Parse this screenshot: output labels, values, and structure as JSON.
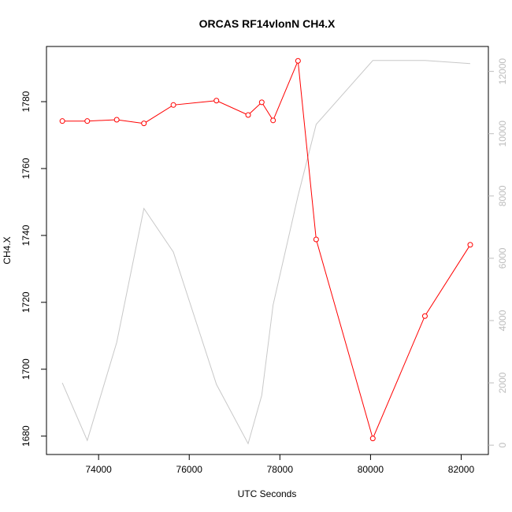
{
  "chart_data": {
    "type": "line",
    "title": "ORCAS RF14vlonN CH4.X",
    "xlabel": "UTC Seconds",
    "ylabel": "CH4.X",
    "y2label": "",
    "xlim": [
      72850,
      82600
    ],
    "ylim": [
      1674.5,
      1796.5
    ],
    "y2lim": [
      -300,
      12800
    ],
    "x_ticks": [
      74000,
      76000,
      78000,
      80000,
      82000
    ],
    "y_ticks": [
      1680,
      1700,
      1720,
      1740,
      1760,
      1780
    ],
    "y2_ticks": [
      0,
      2000,
      4000,
      6000,
      8000,
      10000,
      12000
    ],
    "grid": false,
    "legend": "none",
    "series": [
      {
        "axis": "left",
        "color": "#ff0000",
        "style": "line+points",
        "x": [
          73200,
          73750,
          74400,
          75000,
          75650,
          76600,
          77300,
          77600,
          77850,
          78400,
          78800,
          80050,
          81200,
          82200
        ],
        "y": [
          1774.2,
          1774.2,
          1774.6,
          1773.5,
          1779.0,
          1780.3,
          1776.0,
          1779.8,
          1774.4,
          1792.2,
          1738.8,
          1679.3,
          1715.9,
          1737.2
        ]
      },
      {
        "axis": "right",
        "color": "#c8c8c8",
        "style": "line",
        "x": [
          73200,
          73750,
          74400,
          75000,
          75650,
          76600,
          77300,
          77600,
          77850,
          78400,
          78800,
          80050,
          81200,
          82200
        ],
        "y": [
          2000,
          150,
          3300,
          7600,
          6200,
          1950,
          50,
          1600,
          4500,
          8000,
          10300,
          12350,
          12350,
          12250
        ]
      }
    ]
  }
}
